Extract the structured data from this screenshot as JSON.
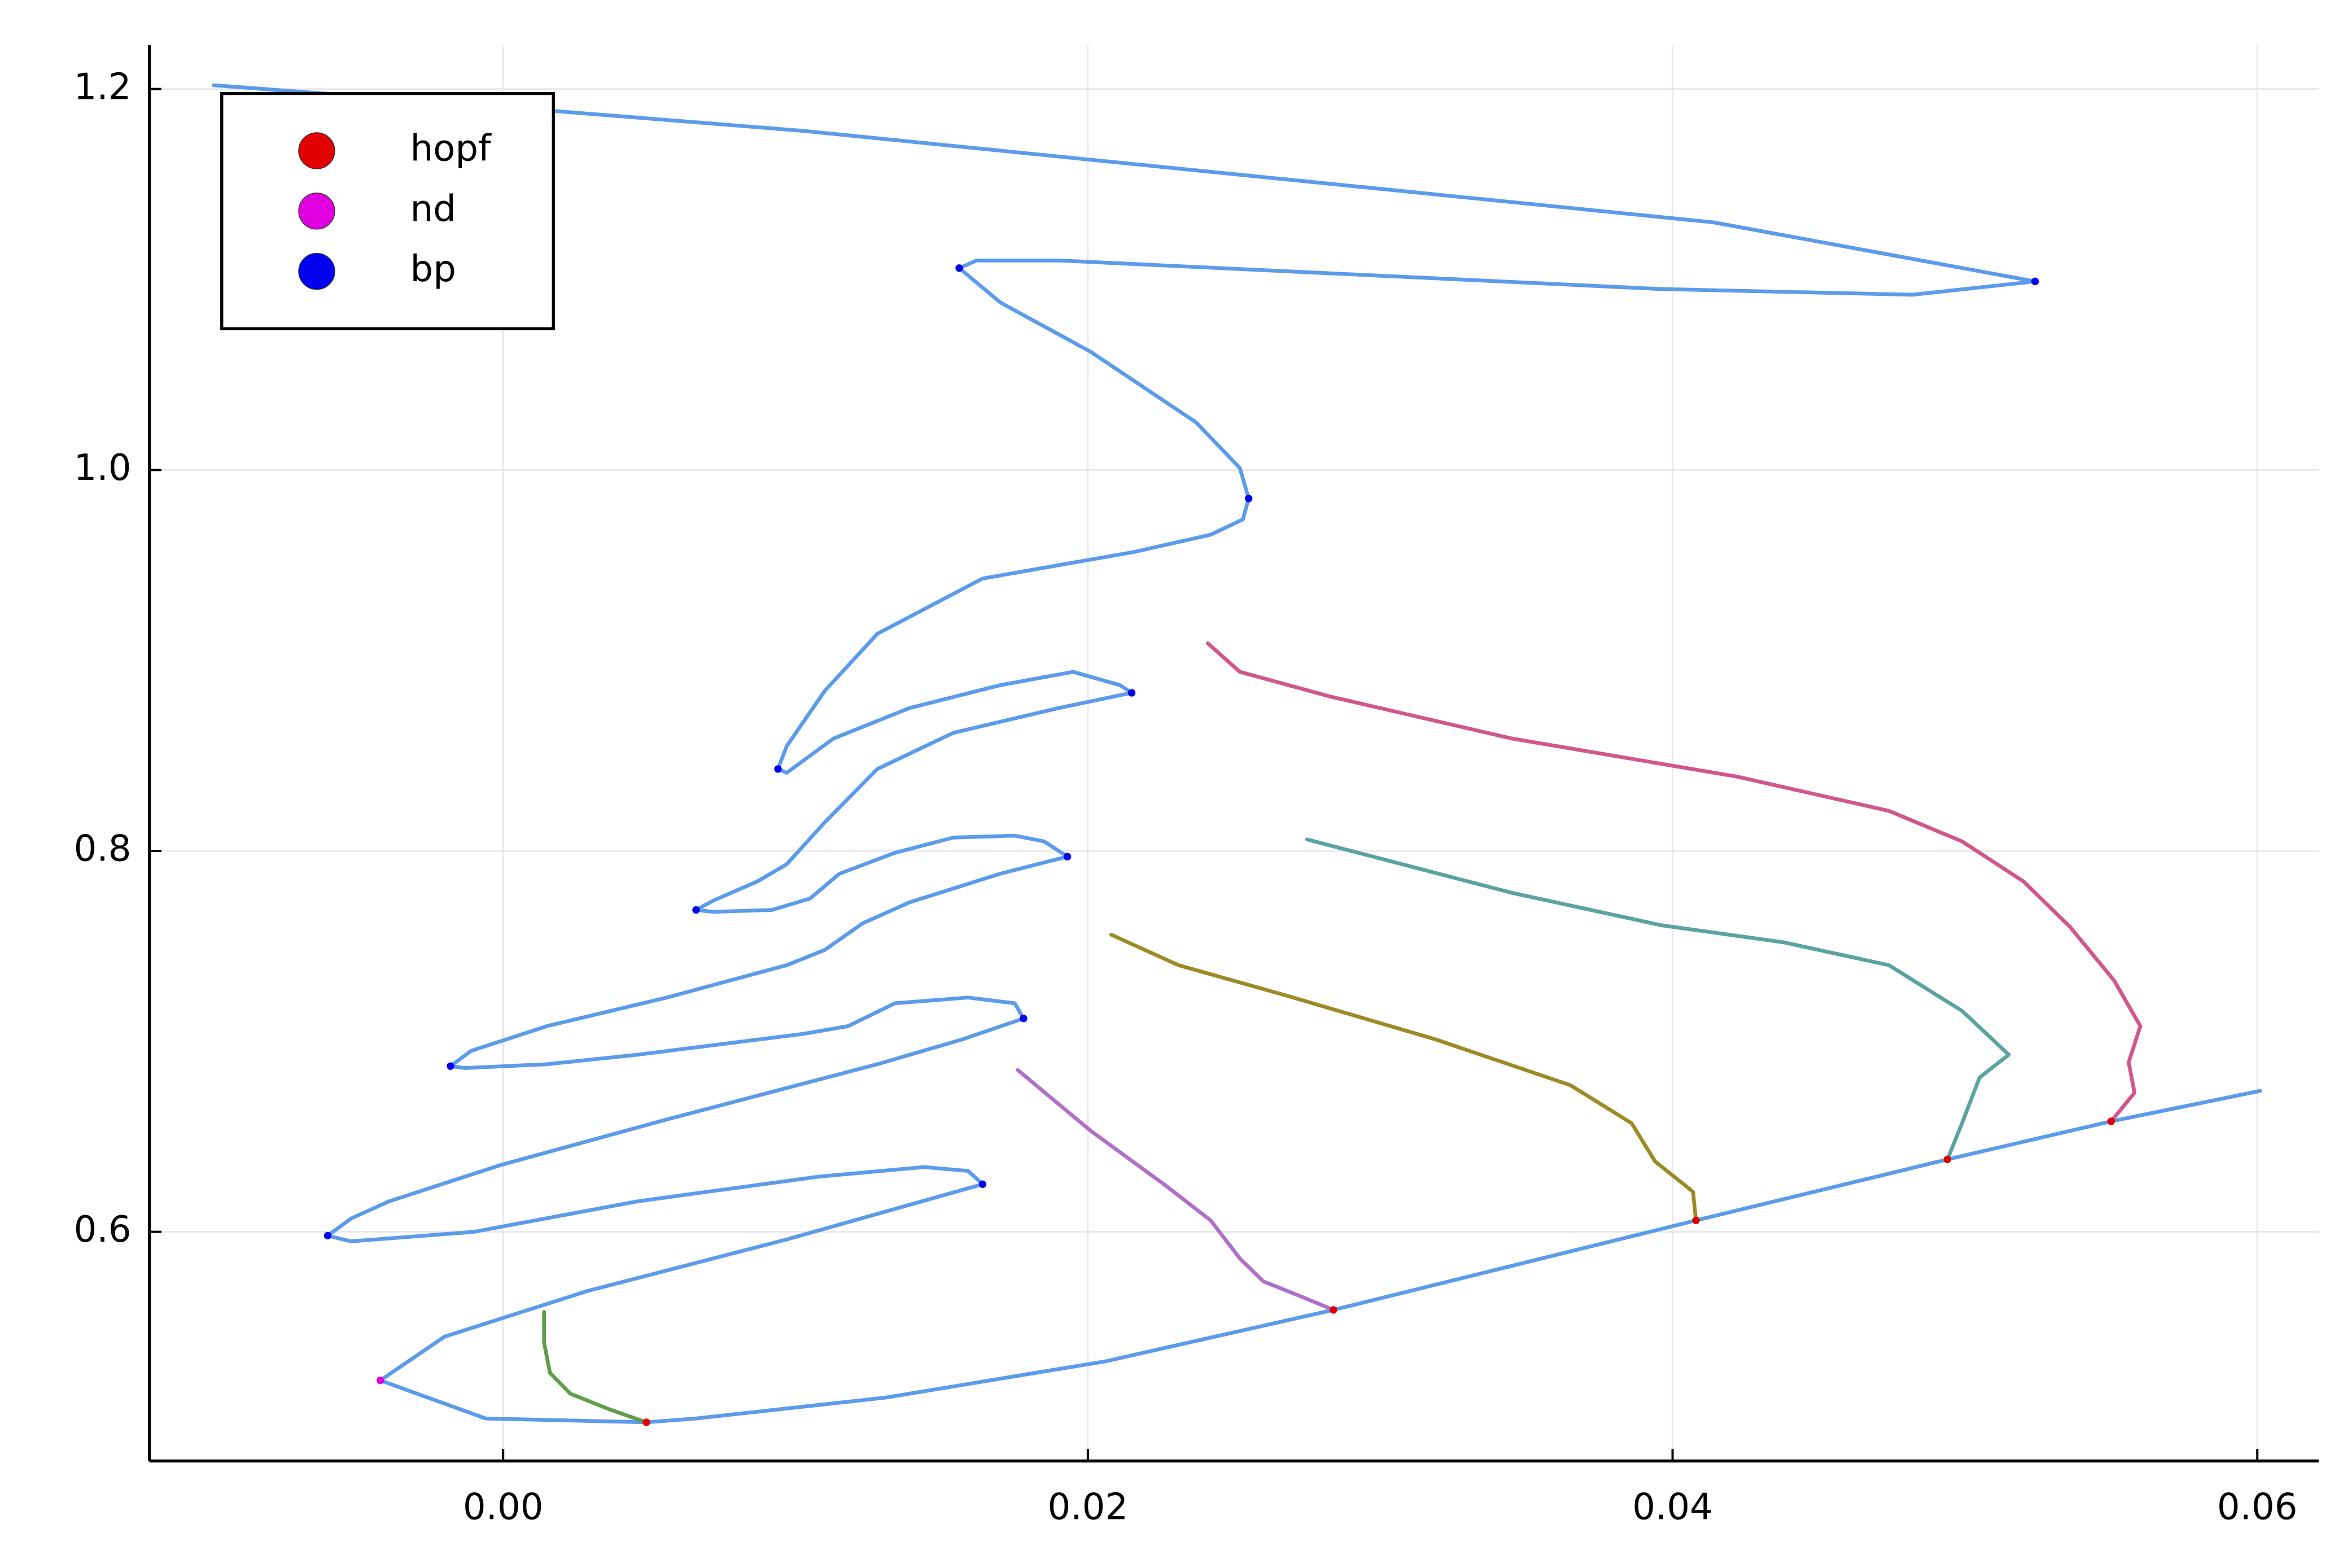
{
  "chart_data": {
    "type": "line",
    "xlim": [
      -0.0121,
      0.0621
    ],
    "ylim": [
      0.4797,
      1.223
    ],
    "xticks": [
      {
        "value": 0,
        "label": "0.00"
      },
      0.02,
      0.04,
      0.06
    ],
    "yticks": [
      0.6,
      0.8,
      {
        "value": 1.0,
        "label": "1.0"
      },
      1.2
    ],
    "grid": true,
    "legend": "top-left",
    "series": [
      {
        "type": "line",
        "color": "#5b9bea",
        "x": [
          0.0601,
          0.055,
          0.0494,
          0.0408,
          0.0284,
          0.0206,
          0.0131,
          0.0066,
          0.0049,
          -0.0006,
          -0.0042,
          -0.002,
          0.0029,
          0.0097,
          0.0164,
          0.0159,
          0.0144,
          0.0108,
          0.0046,
          -0.001,
          -0.0052,
          -0.006,
          -0.0052,
          -0.0039,
          -0.0001,
          0.0056,
          0.0128,
          0.0157,
          0.0178,
          0.0175,
          0.0159,
          0.0134,
          0.0118,
          0.0103,
          0.0046,
          0.0015,
          -0.0013,
          -0.0018,
          -0.0011,
          0.0015,
          0.0056,
          0.0097,
          0.011,
          0.0123,
          0.0139,
          0.017,
          0.0193,
          0.0185,
          0.0175,
          0.0154,
          0.0134,
          0.0115,
          0.0105,
          0.0092,
          0.0072,
          0.0066,
          0.0072,
          0.0087,
          0.0097,
          0.011,
          0.0128,
          0.0154,
          0.019,
          0.0215,
          0.0211,
          0.0195,
          0.017,
          0.0139,
          0.0113,
          0.0097,
          0.0094,
          0.0097,
          0.011,
          0.0128,
          0.0164,
          0.0216,
          0.0242,
          0.0253,
          0.0255,
          0.0252,
          0.0237,
          0.0201,
          0.017,
          0.0156,
          0.0162,
          0.019,
          0.0396,
          0.0482,
          0.0524,
          0.0414,
          0.0103,
          0.0005,
          -0.0099
        ],
        "values": [
          0.674,
          0.658,
          0.638,
          0.606,
          0.559,
          0.532,
          0.513,
          0.502,
          0.5,
          0.502,
          0.522,
          0.545,
          0.569,
          0.596,
          0.625,
          0.632,
          0.634,
          0.629,
          0.616,
          0.6,
          0.595,
          0.598,
          0.607,
          0.616,
          0.635,
          0.659,
          0.688,
          0.701,
          0.712,
          0.72,
          0.723,
          0.72,
          0.708,
          0.704,
          0.693,
          0.688,
          0.686,
          0.687,
          0.695,
          0.708,
          0.723,
          0.74,
          0.748,
          0.762,
          0.773,
          0.788,
          0.797,
          0.805,
          0.808,
          0.807,
          0.799,
          0.788,
          0.775,
          0.769,
          0.768,
          0.769,
          0.774,
          0.784,
          0.793,
          0.815,
          0.843,
          0.862,
          0.875,
          0.883,
          0.887,
          0.894,
          0.887,
          0.875,
          0.859,
          0.841,
          0.843,
          0.855,
          0.884,
          0.914,
          0.943,
          0.957,
          0.966,
          0.974,
          0.985,
          1.001,
          1.025,
          1.062,
          1.088,
          1.106,
          1.11,
          1.11,
          1.095,
          1.092,
          1.099,
          1.13,
          1.178,
          1.19,
          1.202
        ]
      },
      {
        "type": "line",
        "color": "#d0578a",
        "x": [
          0.055,
          0.0558,
          0.0556,
          0.056,
          0.0551,
          0.0536,
          0.052,
          0.0499,
          0.0474,
          0.0422,
          0.0345,
          0.0283,
          0.0252,
          0.0241
        ],
        "values": [
          0.658,
          0.673,
          0.689,
          0.708,
          0.732,
          0.76,
          0.784,
          0.805,
          0.821,
          0.839,
          0.859,
          0.881,
          0.894,
          0.909
        ]
      },
      {
        "type": "line",
        "color": "#5aa3a0",
        "x": [
          0.0494,
          0.0499,
          0.0505,
          0.0515,
          0.0499,
          0.0474,
          0.0438,
          0.0396,
          0.0345,
          0.0275
        ],
        "values": [
          0.638,
          0.657,
          0.681,
          0.693,
          0.716,
          0.74,
          0.752,
          0.761,
          0.778,
          0.806
        ]
      },
      {
        "type": "line",
        "color": "#9c8a25",
        "x": [
          0.0408,
          0.0407,
          0.0394,
          0.0386,
          0.0365,
          0.0319,
          0.0268,
          0.0231,
          0.0208
        ],
        "values": [
          0.606,
          0.621,
          0.637,
          0.657,
          0.677,
          0.701,
          0.724,
          0.74,
          0.756
        ]
      },
      {
        "type": "line",
        "color": "#b070c8",
        "x": [
          0.0284,
          0.0273,
          0.026,
          0.0252,
          0.0242,
          0.0226,
          0.0201,
          0.0176
        ],
        "values": [
          0.559,
          0.566,
          0.574,
          0.586,
          0.606,
          0.625,
          0.653,
          0.685
        ]
      },
      {
        "type": "line",
        "color": "#5f9e4a",
        "x": [
          0.0049,
          0.0036,
          0.0023,
          0.0016,
          0.0014,
          0.0014
        ],
        "values": [
          0.5,
          0.507,
          0.515,
          0.526,
          0.542,
          0.558
        ]
      },
      {
        "type": "scatter",
        "name": "hopf",
        "color": "#e00000",
        "x": [
          0.055,
          0.0494,
          0.0408,
          0.0284,
          0.0049
        ],
        "values": [
          0.658,
          0.638,
          0.606,
          0.559,
          0.5
        ]
      },
      {
        "type": "scatter",
        "name": "nd",
        "color": "#e000e0",
        "x": [
          -0.0042
        ],
        "values": [
          0.522
        ]
      },
      {
        "type": "scatter",
        "name": "bp",
        "color": "#0000ee",
        "x": [
          0.0164,
          -0.006,
          0.0178,
          -0.0018,
          0.0193,
          0.0066,
          0.0215,
          0.0094,
          0.0255,
          0.0156,
          0.0524
        ],
        "values": [
          0.625,
          0.598,
          0.712,
          0.687,
          0.797,
          0.769,
          0.883,
          0.843,
          0.985,
          1.106,
          1.099
        ]
      }
    ]
  }
}
